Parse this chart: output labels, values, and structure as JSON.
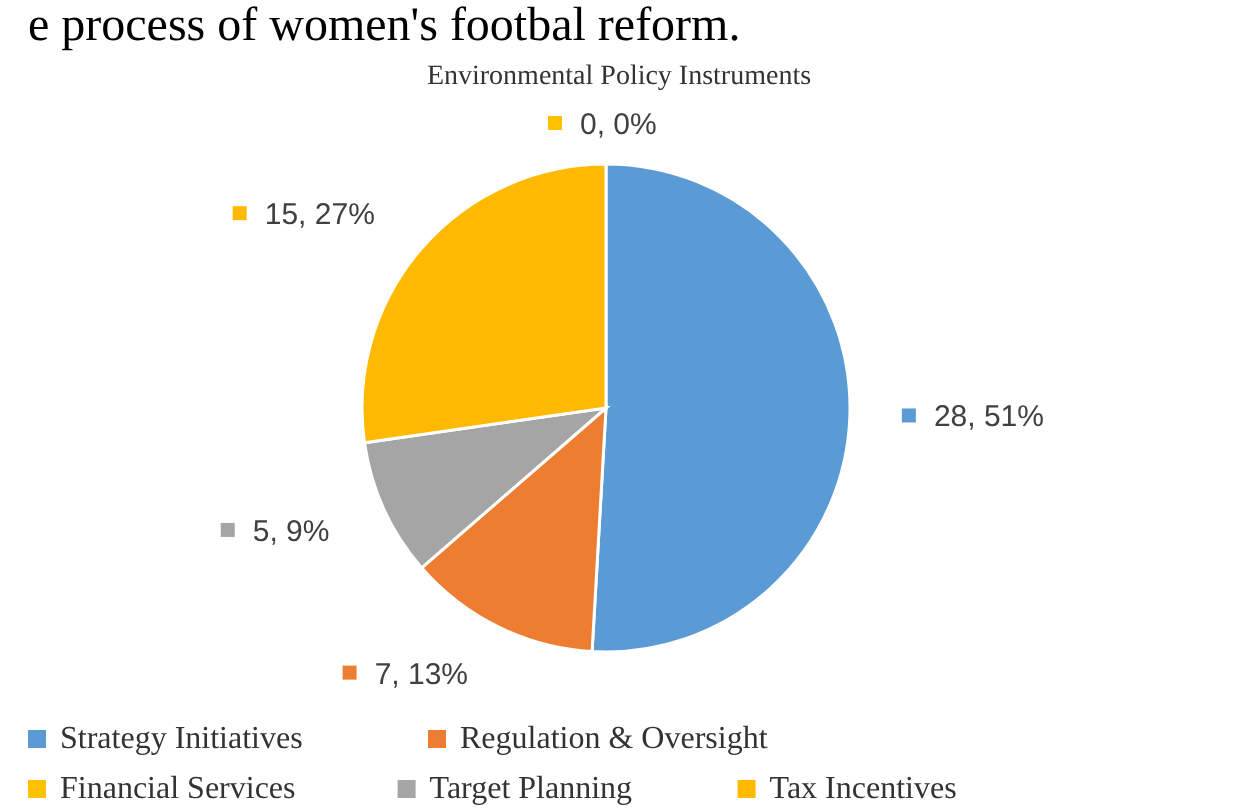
{
  "chart_data": {
    "type": "pie",
    "title": "Environmental Policy Instruments",
    "annotations": [
      "e process of women's footbal reform."
    ],
    "categories": [
      "Strategy Initiatives",
      "Regulation & Oversight",
      "Financial Services",
      "Target Planning",
      "Tax Incentives"
    ],
    "values": [
      28,
      7,
      0,
      5,
      15
    ],
    "colors": [
      "#5b9bd5",
      "#ed7d31",
      "#ffc000",
      "#a5a5a5",
      "#ffb900"
    ],
    "value_labels": [
      "28, 51%",
      "7, 13%",
      "0, 0%",
      "5, 9%",
      "15, 27%"
    ],
    "legend": "bottom"
  }
}
